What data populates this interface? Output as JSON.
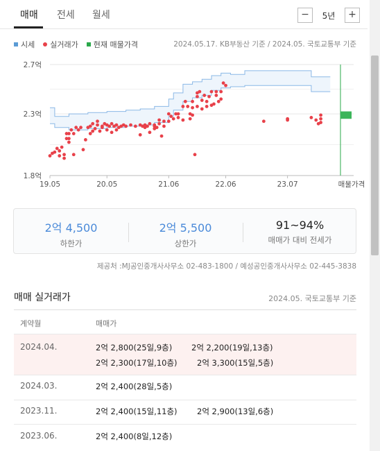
{
  "tabs": [
    "매매",
    "전세",
    "월세"
  ],
  "period": {
    "minus": "−",
    "value": "5년",
    "plus": "+"
  },
  "legend": {
    "items": [
      {
        "label": "시세",
        "color": "#5b9bd5",
        "shape": "square"
      },
      {
        "label": "실거래가",
        "color": "#e8414a",
        "shape": "dot"
      },
      {
        "label": "현재 매물가격",
        "color": "#2aa84a",
        "shape": "square"
      }
    ],
    "source": "2024.05.17. KB부동산 기준 / 2024.05. 국토교통부 기준"
  },
  "chart_data": {
    "type": "scatter",
    "y_ticks": [
      {
        "v": 1.8,
        "label": "1.8억"
      },
      {
        "v": 2.3,
        "label": "2.3억"
      },
      {
        "v": 2.7,
        "label": "2.7억"
      }
    ],
    "ylim": [
      1.8,
      2.7
    ],
    "x_ticks": [
      {
        "t": 0,
        "label": "19.05"
      },
      {
        "t": 12,
        "label": "20.05"
      },
      {
        "t": 25,
        "label": "21.06"
      },
      {
        "t": 37,
        "label": "22.06"
      },
      {
        "t": 50,
        "label": "23.07"
      }
    ],
    "x_end_label": "매물가격",
    "xlim": [
      0,
      61
    ],
    "market_upper": [
      [
        0,
        2.35
      ],
      [
        1,
        2.35
      ],
      [
        1,
        2.28
      ],
      [
        4,
        2.28
      ],
      [
        4,
        2.3
      ],
      [
        8,
        2.3
      ],
      [
        8,
        2.31
      ],
      [
        12,
        2.31
      ],
      [
        12,
        2.32
      ],
      [
        16,
        2.32
      ],
      [
        16,
        2.33
      ],
      [
        19,
        2.33
      ],
      [
        19,
        2.34
      ],
      [
        22,
        2.34
      ],
      [
        22,
        2.36
      ],
      [
        25,
        2.36
      ],
      [
        25,
        2.42
      ],
      [
        26,
        2.42
      ],
      [
        26,
        2.47
      ],
      [
        28,
        2.47
      ],
      [
        28,
        2.54
      ],
      [
        30,
        2.54
      ],
      [
        30,
        2.56
      ],
      [
        32,
        2.56
      ],
      [
        32,
        2.58
      ],
      [
        34,
        2.58
      ],
      [
        34,
        2.61
      ],
      [
        36,
        2.61
      ],
      [
        36,
        2.63
      ],
      [
        38,
        2.63
      ],
      [
        38,
        2.62
      ],
      [
        41,
        2.62
      ],
      [
        41,
        2.65
      ],
      [
        55,
        2.65
      ],
      [
        55,
        2.6
      ],
      [
        59,
        2.6
      ]
    ],
    "market_lower": [
      [
        0,
        2.22
      ],
      [
        1,
        2.22
      ],
      [
        1,
        2.19
      ],
      [
        4,
        2.19
      ],
      [
        4,
        2.17
      ],
      [
        8,
        2.17
      ],
      [
        8,
        2.18
      ],
      [
        12,
        2.18
      ],
      [
        12,
        2.19
      ],
      [
        16,
        2.19
      ],
      [
        16,
        2.2
      ],
      [
        19,
        2.2
      ],
      [
        19,
        2.21
      ],
      [
        22,
        2.21
      ],
      [
        22,
        2.23
      ],
      [
        25,
        2.23
      ],
      [
        25,
        2.28
      ],
      [
        26,
        2.28
      ],
      [
        26,
        2.33
      ],
      [
        28,
        2.33
      ],
      [
        28,
        2.4
      ],
      [
        30,
        2.4
      ],
      [
        30,
        2.43
      ],
      [
        32,
        2.43
      ],
      [
        32,
        2.45
      ],
      [
        34,
        2.45
      ],
      [
        34,
        2.49
      ],
      [
        36,
        2.49
      ],
      [
        36,
        2.51
      ],
      [
        38,
        2.51
      ],
      [
        38,
        2.52
      ],
      [
        41,
        2.52
      ],
      [
        41,
        2.53
      ],
      [
        55,
        2.53
      ],
      [
        55,
        2.48
      ],
      [
        59,
        2.48
      ]
    ],
    "deals": [
      [
        0,
        1.96
      ],
      [
        0.5,
        1.98
      ],
      [
        1,
        1.99
      ],
      [
        1.5,
        2.02
      ],
      [
        2,
        1.96
      ],
      [
        2,
        2.0
      ],
      [
        2.5,
        2.03
      ],
      [
        3,
        1.97
      ],
      [
        3,
        1.94
      ],
      [
        3.5,
        2.1
      ],
      [
        3.5,
        2.14
      ],
      [
        4,
        2.14
      ],
      [
        4,
        2.1
      ],
      [
        4,
        2.07
      ],
      [
        4.5,
        2.17
      ],
      [
        5,
        2.14
      ],
      [
        5,
        1.97
      ],
      [
        5.5,
        2.19
      ],
      [
        6,
        2.17
      ],
      [
        6.5,
        2.19
      ],
      [
        7,
        2.01
      ],
      [
        7.5,
        2.09
      ],
      [
        8,
        2.19
      ],
      [
        8.5,
        2.2
      ],
      [
        8.5,
        2.14
      ],
      [
        9,
        2.16
      ],
      [
        9,
        2.22
      ],
      [
        9.5,
        2.18
      ],
      [
        10,
        2.21
      ],
      [
        10,
        2.24
      ],
      [
        10.5,
        2.16
      ],
      [
        11,
        2.19
      ],
      [
        11,
        2.2
      ],
      [
        11.5,
        2.22
      ],
      [
        12,
        2.21
      ],
      [
        12,
        2.17
      ],
      [
        12.5,
        2.2
      ],
      [
        13,
        2.15
      ],
      [
        13,
        2.22
      ],
      [
        13.5,
        2.2
      ],
      [
        14,
        2.21
      ],
      [
        14,
        2.17
      ],
      [
        14.5,
        2.19
      ],
      [
        15,
        2.2
      ],
      [
        15.5,
        2.21
      ],
      [
        16,
        2.2
      ],
      [
        17,
        2.21
      ],
      [
        18,
        2.2
      ],
      [
        19,
        2.21
      ],
      [
        19,
        2.13
      ],
      [
        19.5,
        2.2
      ],
      [
        20,
        2.19
      ],
      [
        20,
        2.21
      ],
      [
        20.5,
        2.2
      ],
      [
        21,
        2.22
      ],
      [
        21,
        2.15
      ],
      [
        22,
        2.2
      ],
      [
        22,
        2.21
      ],
      [
        22,
        2.18
      ],
      [
        22.5,
        2.19
      ],
      [
        23,
        2.22
      ],
      [
        23,
        2.25
      ],
      [
        23.5,
        2.12
      ],
      [
        24,
        2.24
      ],
      [
        24,
        2.2
      ],
      [
        25,
        2.24
      ],
      [
        25,
        2.3
      ],
      [
        25.5,
        2.28
      ],
      [
        26,
        2.26
      ],
      [
        26.5,
        2.3
      ],
      [
        27,
        2.3
      ],
      [
        27,
        2.27
      ],
      [
        28,
        2.36
      ],
      [
        28,
        2.25
      ],
      [
        28.5,
        2.4
      ],
      [
        29,
        2.36
      ],
      [
        29.5,
        2.3
      ],
      [
        29.5,
        2.26
      ],
      [
        30,
        2.35
      ],
      [
        30,
        2.4
      ],
      [
        30,
        2.29
      ],
      [
        31,
        2.36
      ],
      [
        31,
        2.44
      ],
      [
        31,
        2.47
      ],
      [
        31.5,
        2.48
      ],
      [
        32,
        2.41
      ],
      [
        32,
        2.34
      ],
      [
        32.5,
        2.45
      ],
      [
        33,
        2.4
      ],
      [
        33,
        2.36
      ],
      [
        33.5,
        2.44
      ],
      [
        34,
        2.48
      ],
      [
        34,
        2.37
      ],
      [
        34.5,
        2.38
      ],
      [
        35,
        2.48
      ],
      [
        35,
        2.45
      ],
      [
        35.5,
        2.4
      ],
      [
        36,
        2.48
      ],
      [
        36,
        2.42
      ],
      [
        36.5,
        2.55
      ],
      [
        37,
        2.53
      ],
      [
        30.5,
        1.97
      ],
      [
        45,
        2.24
      ],
      [
        50,
        2.26
      ],
      [
        50,
        2.25
      ],
      [
        55,
        2.27
      ],
      [
        56,
        2.25
      ],
      [
        56.5,
        2.22
      ],
      [
        57,
        2.26
      ],
      [
        57,
        2.23
      ],
      [
        57,
        2.29
      ]
    ],
    "current_listing": {
      "low": 2.26,
      "high": 2.32
    },
    "grid": true
  },
  "summary": [
    {
      "value": "2억 4,500",
      "label": "하한가"
    },
    {
      "value": "2억 5,500",
      "label": "상한가"
    },
    {
      "value": "91~94%",
      "label": "매매가 대비 전세가"
    }
  ],
  "provider": "제공처 :MJ공인중개사사무소 02-483-1800 / 예성공인중개사사무소 02-445-3838",
  "deals_section": {
    "title": "매매 실거래가",
    "source": "2024.05. 국토교통부 기준",
    "headers": [
      "계약월",
      "매매가"
    ],
    "rows": [
      {
        "month": "2024.04.",
        "deals": [
          "2억 2,800(25일,9층)",
          "2억 2,200(19일,13층)",
          "2억 2,300(17일,10층)",
          "2억 3,300(15일,5층)"
        ]
      },
      {
        "month": "2024.03.",
        "deals": [
          "2억 2,400(28일,5층)"
        ]
      },
      {
        "month": "2023.11.",
        "deals": [
          "2억 2,400(15일,11층)",
          "2억 2,900(13일,6층)"
        ]
      },
      {
        "month": "2023.06.",
        "deals": [
          "2억 2,400(8일,12층)"
        ]
      }
    ]
  }
}
